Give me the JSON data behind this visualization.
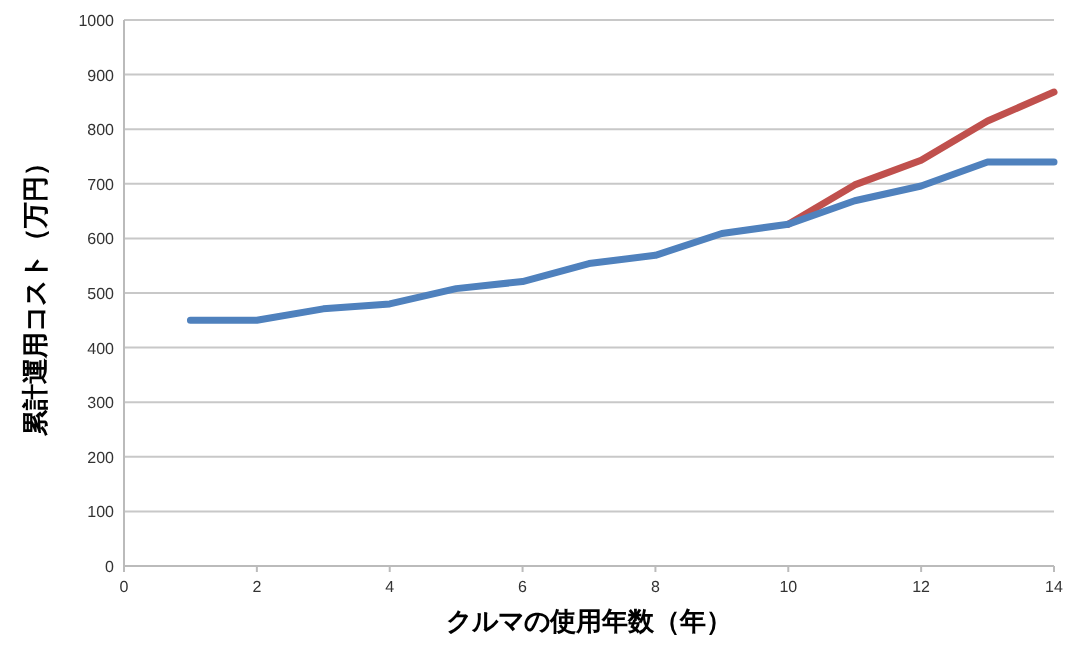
{
  "chart_data": {
    "type": "line",
    "xlabel": "クルマの使用年数（年）",
    "ylabel": "累計運用コスト（万円）",
    "x": [
      1,
      2,
      3,
      4,
      5,
      6,
      7,
      8,
      9,
      10,
      11,
      12,
      13,
      14
    ],
    "series": [
      {
        "color": "#c0504d",
        "values": [
          null,
          null,
          null,
          null,
          null,
          null,
          null,
          null,
          null,
          626,
          698,
          743,
          815,
          868
        ]
      },
      {
        "color": "#4f81bd",
        "values": [
          450,
          450,
          471,
          480,
          508,
          521,
          554,
          569,
          609,
          626,
          669,
          696,
          740,
          740
        ]
      }
    ],
    "xlim": [
      0,
      14
    ],
    "xticks": [
      0,
      2,
      4,
      6,
      8,
      10,
      12,
      14
    ],
    "ylim": [
      0,
      1000
    ],
    "yticks": [
      0,
      100,
      200,
      300,
      400,
      500,
      600,
      700,
      800,
      900,
      1000
    ],
    "grid": "y",
    "marker": "none",
    "line_style": "solid"
  }
}
